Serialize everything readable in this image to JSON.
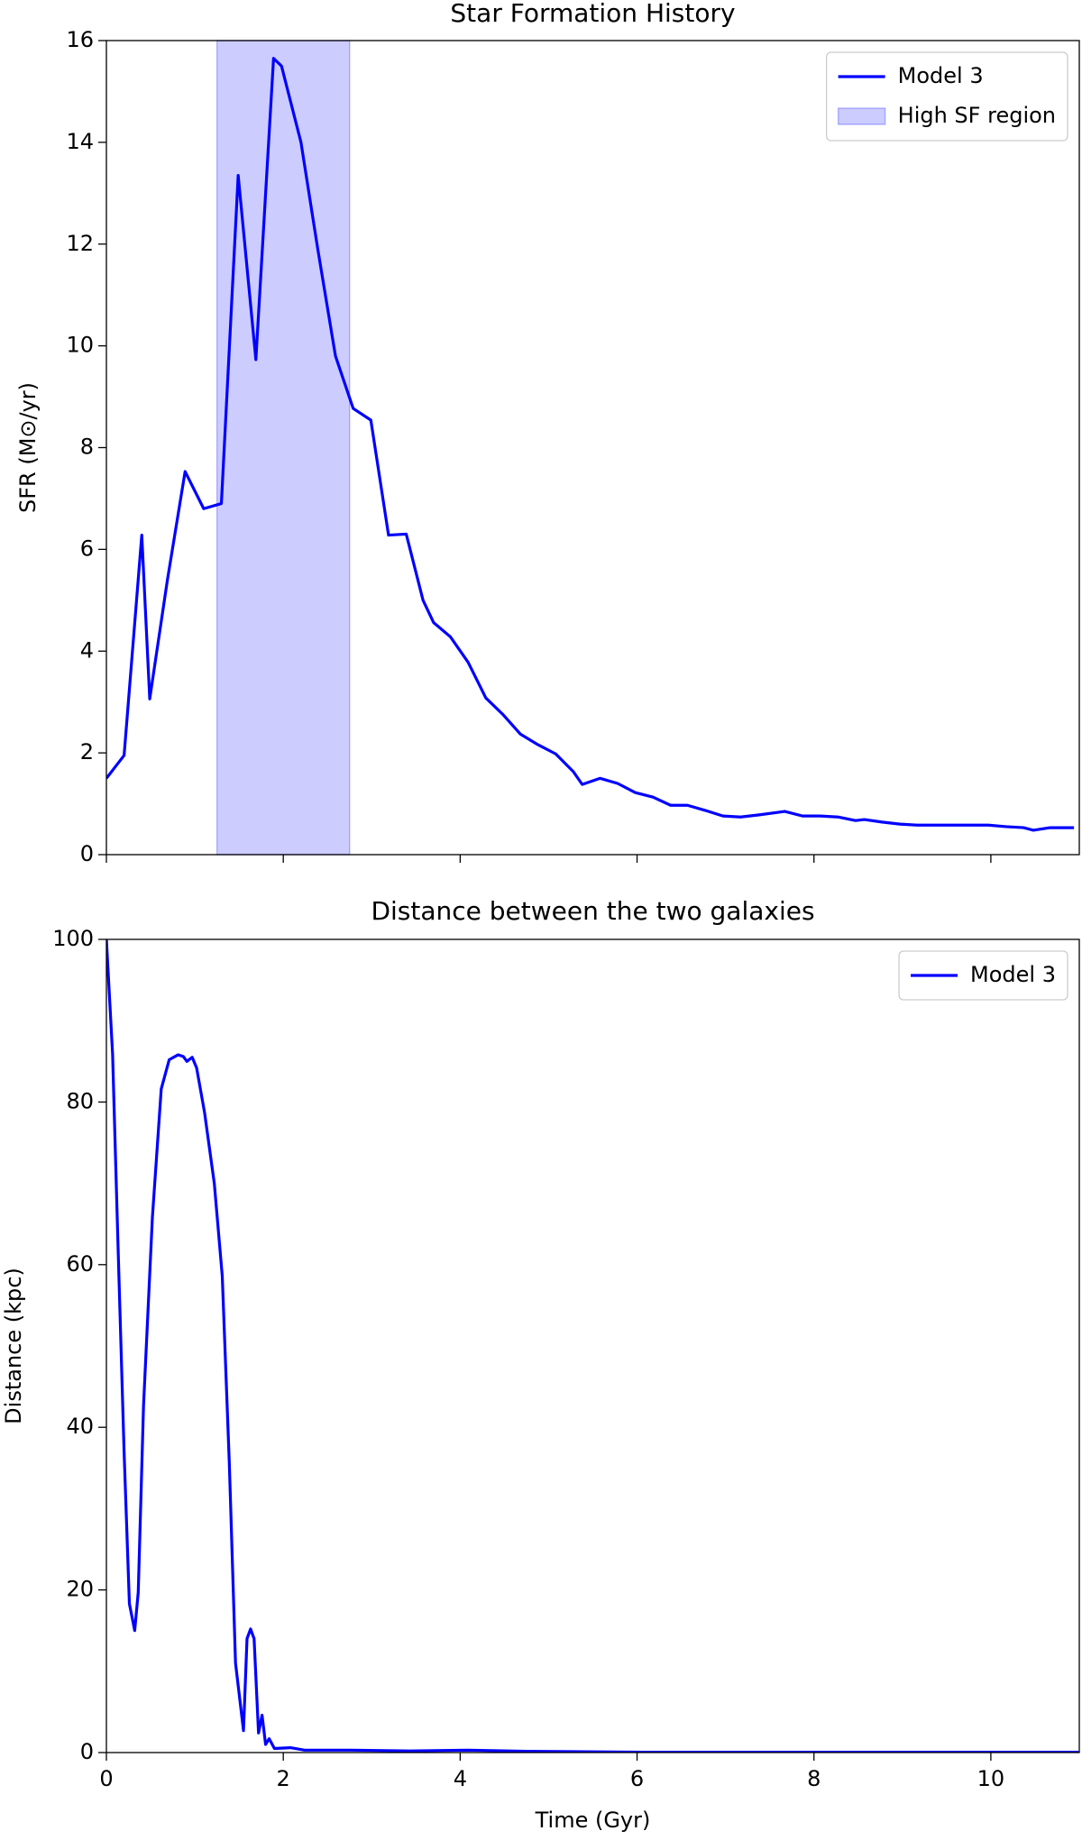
{
  "chart_data": [
    {
      "type": "line",
      "title": "Star Formation History",
      "ylabel": "SFR (M⊙/yr)",
      "xlim": [
        0,
        11
      ],
      "xticks": [
        0,
        2,
        4,
        6,
        8,
        10
      ],
      "ylim": [
        0,
        16
      ],
      "yticks": [
        0,
        2,
        4,
        6,
        8,
        10,
        12,
        14,
        16
      ],
      "legend": "upper right",
      "spans": [
        {
          "name": "High SF region",
          "x": [
            1.25,
            2.75
          ],
          "color": "#0000ff"
        }
      ],
      "series": [
        {
          "name": "Model 3",
          "color": "#0000ff",
          "x": [
            0,
            0.2,
            0.4,
            0.49,
            0.69,
            0.89,
            1.1,
            1.3,
            1.49,
            1.69,
            1.89,
            1.98,
            2.2,
            2.39,
            2.59,
            2.79,
            2.99,
            3.19,
            3.39,
            3.58,
            3.7,
            3.89,
            4.09,
            4.29,
            4.48,
            4.68,
            4.88,
            5.08,
            5.28,
            5.38,
            5.58,
            5.78,
            5.98,
            6.18,
            6.38,
            6.57,
            6.77,
            6.97,
            7.17,
            7.37,
            7.67,
            7.87,
            8.07,
            8.27,
            8.47,
            8.57,
            8.77,
            8.97,
            9.17,
            9.37,
            9.56,
            9.97,
            10.17,
            10.37,
            10.48,
            10.67,
            10.94
          ],
          "values": [
            1.5,
            1.95,
            6.28,
            3.06,
            5.4,
            7.53,
            6.8,
            6.9,
            13.35,
            9.73,
            15.65,
            15.5,
            14.0,
            11.9,
            9.8,
            8.77,
            8.54,
            6.28,
            6.3,
            5.0,
            4.56,
            4.28,
            3.78,
            3.08,
            2.76,
            2.37,
            2.16,
            1.98,
            1.63,
            1.38,
            1.5,
            1.4,
            1.22,
            1.13,
            0.97,
            0.97,
            0.87,
            0.76,
            0.74,
            0.78,
            0.85,
            0.76,
            0.76,
            0.74,
            0.67,
            0.69,
            0.64,
            0.6,
            0.58,
            0.58,
            0.58,
            0.58,
            0.55,
            0.53,
            0.48,
            0.53,
            0.53
          ]
        }
      ]
    },
    {
      "type": "line",
      "title": "Distance between the two galaxies",
      "xlabel": "Time (Gyr)",
      "ylabel": "Distance (kpc)",
      "xlim": [
        0,
        11
      ],
      "xticks": [
        0,
        2,
        4,
        6,
        8,
        10
      ],
      "ylim": [
        0,
        100
      ],
      "yticks": [
        0,
        20,
        40,
        60,
        80,
        100
      ],
      "legend": "upper right",
      "series": [
        {
          "name": "Model 3",
          "color": "#0000ff",
          "x": [
            0,
            0.07,
            0.13,
            0.2,
            0.26,
            0.32,
            0.36,
            0.42,
            0.52,
            0.62,
            0.71,
            0.81,
            0.87,
            0.91,
            0.97,
            1.02,
            1.11,
            1.22,
            1.31,
            1.39,
            1.46,
            1.55,
            1.59,
            1.63,
            1.67,
            1.72,
            1.76,
            1.8,
            1.84,
            1.9,
            2.08,
            2.24,
            2.77,
            3.43,
            4.09,
            4.75,
            6.07,
            11
          ],
          "values": [
            100,
            85.9,
            62.9,
            37,
            18.3,
            15,
            19.7,
            42.7,
            65.8,
            81.6,
            85.2,
            85.8,
            85.6,
            85,
            85.5,
            84.2,
            78.7,
            70,
            58.6,
            35.5,
            11,
            2.7,
            14,
            15.2,
            14,
            2.4,
            4.6,
            1,
            1.7,
            0.5,
            0.6,
            0.3,
            0.3,
            0.2,
            0.3,
            0.15,
            0.05,
            0.05
          ]
        }
      ]
    }
  ]
}
